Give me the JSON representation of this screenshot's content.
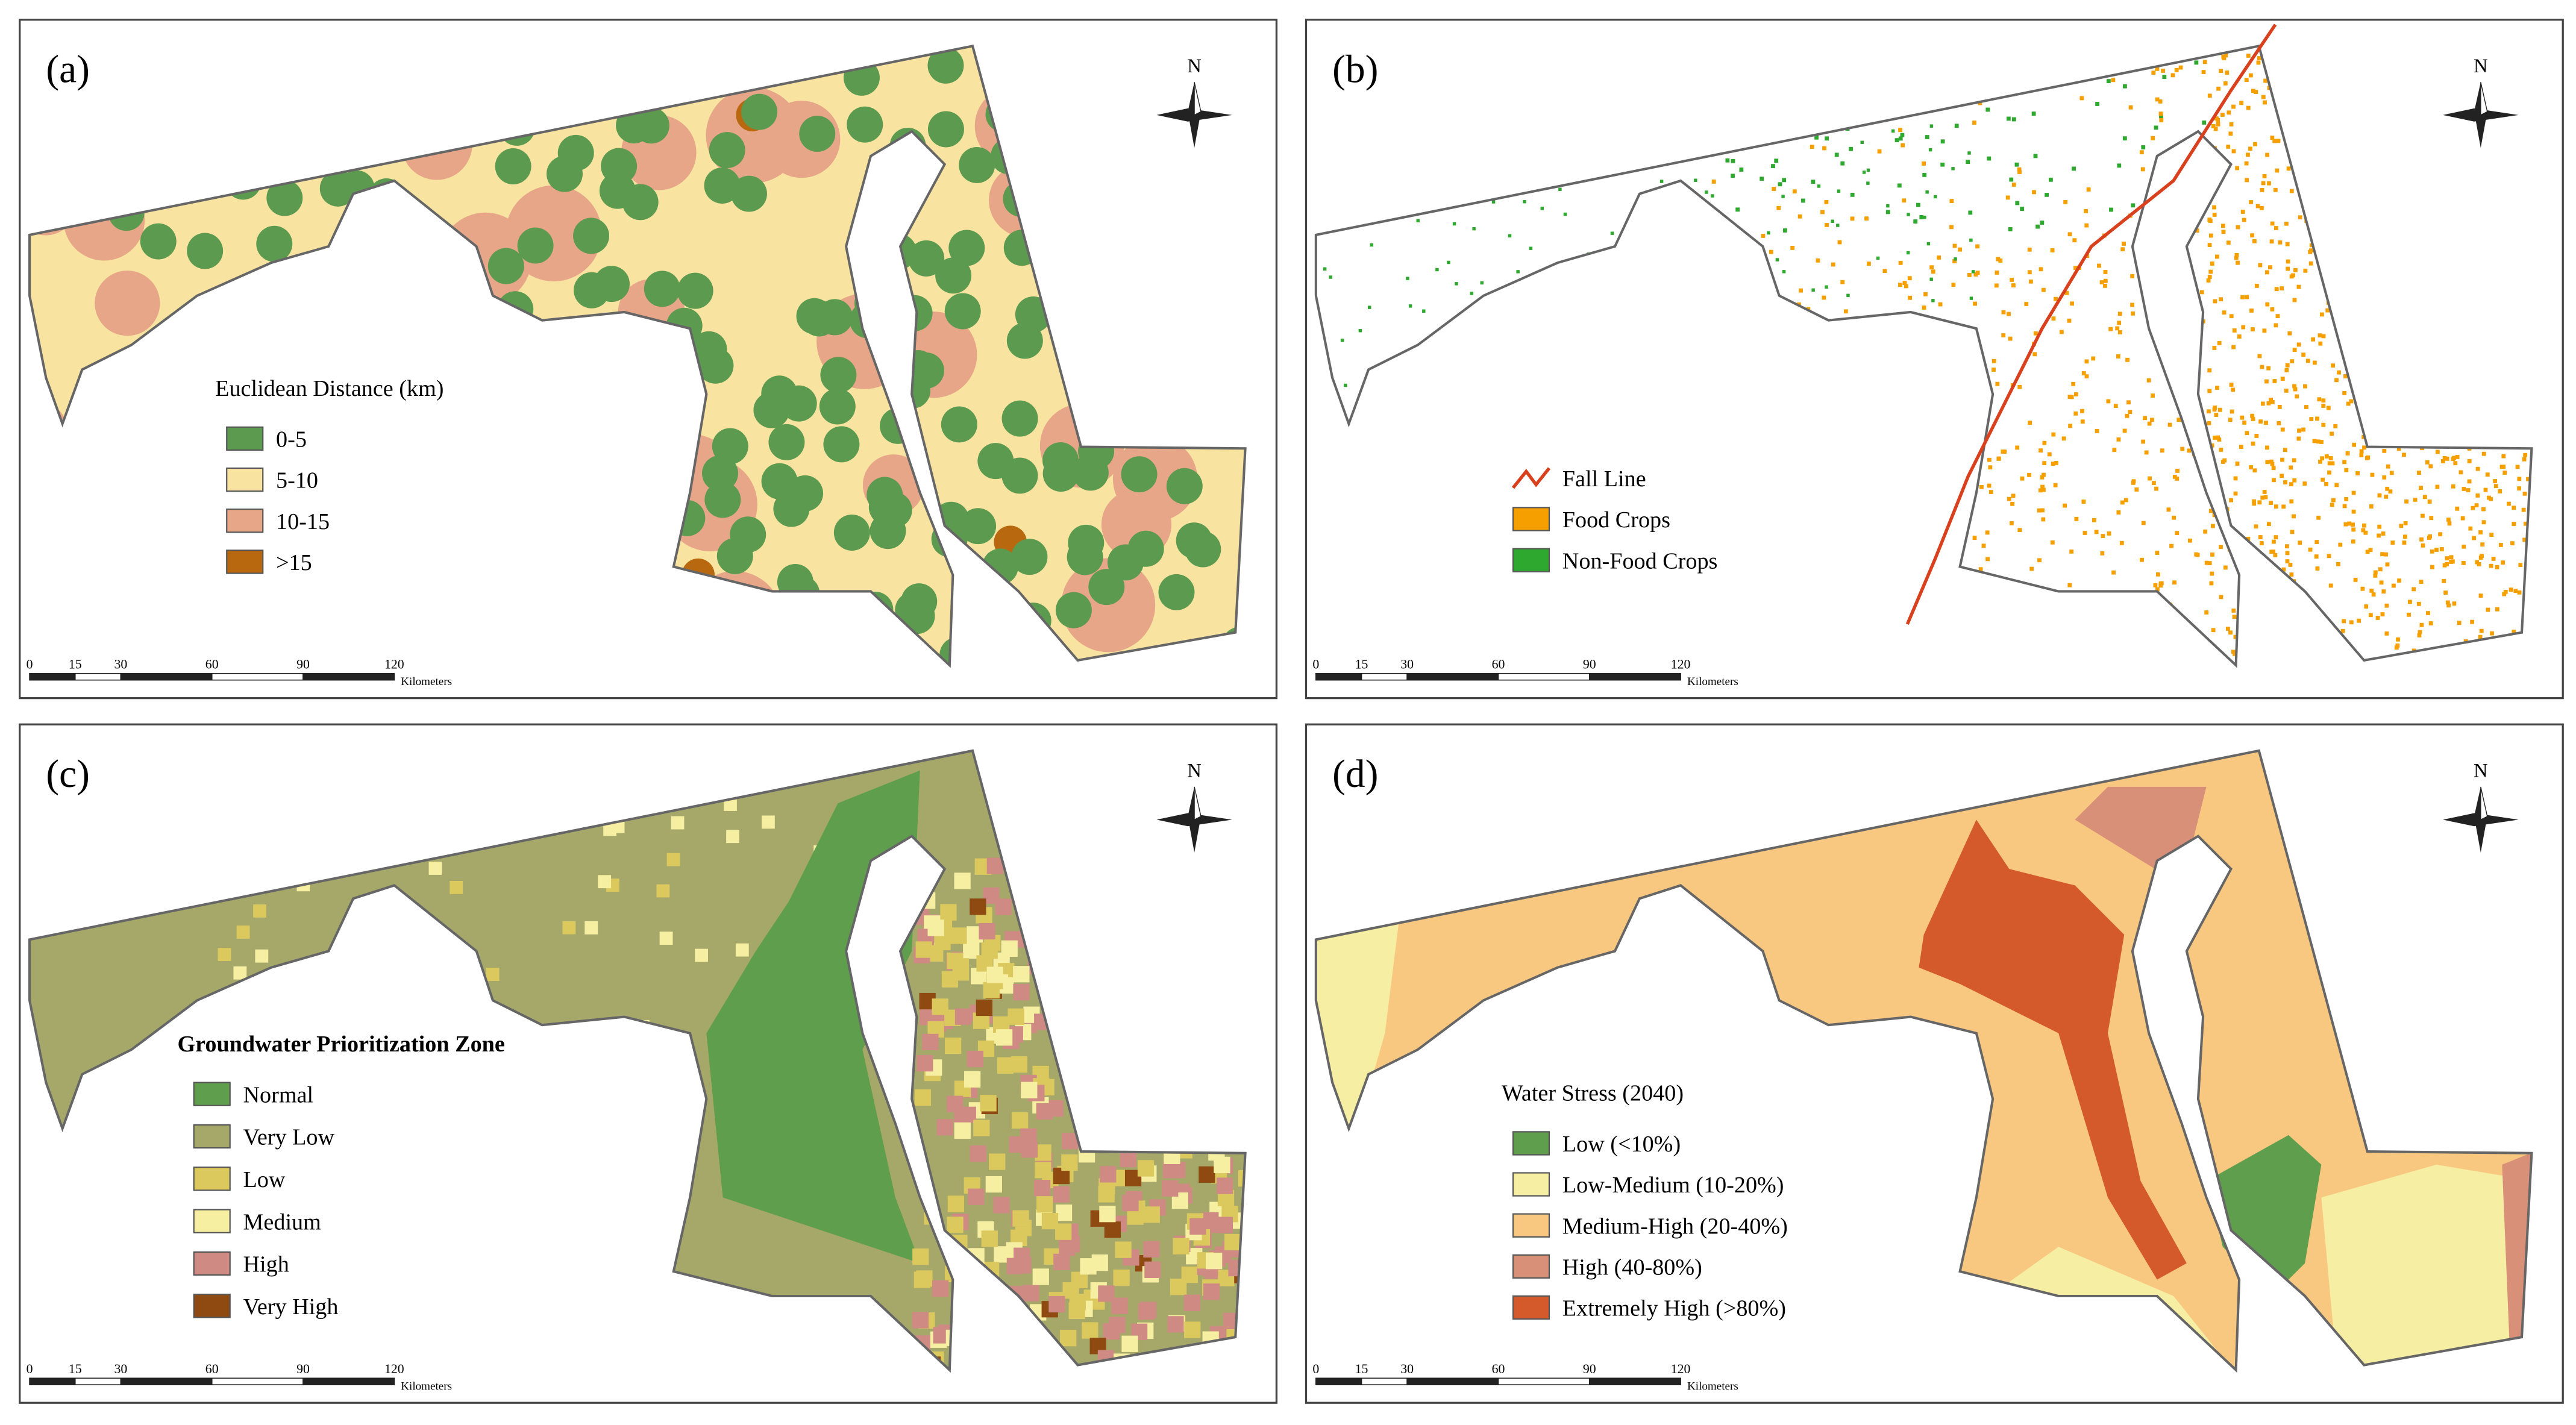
{
  "panels": [
    {
      "label": "(a)",
      "legend": {
        "title": "Euclidean Distance (km)",
        "items": [
          {
            "label": "0-5",
            "color": "#5b9a4f"
          },
          {
            "label": "5-10",
            "color": "#f8e4a0"
          },
          {
            "label": "10-15",
            "color": "#e8a688"
          },
          {
            "label": ">15",
            "color": "#b8690f"
          }
        ]
      }
    },
    {
      "label": "(b)",
      "legend": {
        "items": [
          {
            "label": "Fall Line",
            "color": "#d9411e",
            "symbol": "line"
          },
          {
            "label": "Food Crops",
            "color": "#f5a000"
          },
          {
            "label": "Non-Food Crops",
            "color": "#2ea82e"
          }
        ]
      }
    },
    {
      "label": "(c)",
      "legend": {
        "title": "Groundwater Prioritization Zone",
        "items": [
          {
            "label": "Normal",
            "color": "#5f9e4c"
          },
          {
            "label": "Very Low",
            "color": "#a6a86a"
          },
          {
            "label": "Low",
            "color": "#dcc95e"
          },
          {
            "label": "Medium",
            "color": "#f6eea0"
          },
          {
            "label": "High",
            "color": "#cf8a84"
          },
          {
            "label": "Very High",
            "color": "#8e4a10"
          }
        ]
      }
    },
    {
      "label": "(d)",
      "legend": {
        "title": "Water Stress (2040)",
        "items": [
          {
            "label": "Low (<10%)",
            "color": "#5f9e4c"
          },
          {
            "label": "Low-Medium (10-20%)",
            "color": "#f6eea3"
          },
          {
            "label": "Medium-High (20-40%)",
            "color": "#f8c880"
          },
          {
            "label": "High (40-80%)",
            "color": "#d99078"
          },
          {
            "label": "Extremely High (>80%)",
            "color": "#d45a2c"
          }
        ]
      }
    }
  ],
  "north_label": "N",
  "scale_bar": {
    "ticks": [
      0,
      15,
      30,
      60,
      90,
      120
    ],
    "unit": "Kilometers"
  }
}
